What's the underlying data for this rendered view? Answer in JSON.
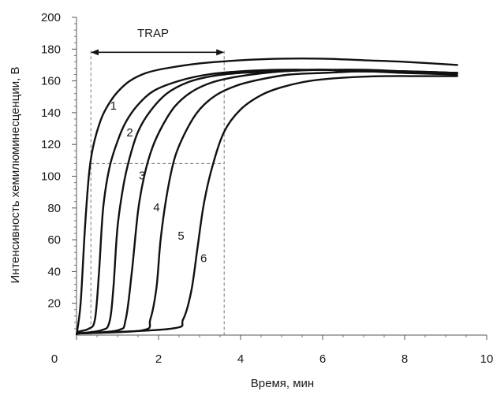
{
  "chart_data": {
    "type": "line",
    "title": "",
    "xlabel": "Время, мин",
    "ylabel": "Интенсивность хемилюминесценции, В",
    "xlim": [
      0,
      10
    ],
    "ylim": [
      0,
      200
    ],
    "x_ticks": [
      0,
      2,
      4,
      6,
      8,
      10
    ],
    "y_ticks": [
      20,
      40,
      60,
      80,
      100,
      120,
      140,
      160,
      180,
      200
    ],
    "grid": false,
    "legend": "none",
    "line_color": "#111111",
    "series": [
      {
        "label": "1",
        "x": [
          0.0,
          0.1,
          0.2,
          0.3,
          0.4,
          0.6,
          0.8,
          1.0,
          1.3,
          1.7,
          2.2,
          3.0,
          4.0,
          5.0,
          6.0,
          7.0,
          8.0,
          9.3
        ],
        "y": [
          0,
          20,
          65,
          100,
          118,
          136,
          146,
          153,
          160,
          165,
          168,
          171,
          173,
          174,
          174,
          173,
          172,
          170
        ]
      },
      {
        "label": "2",
        "x": [
          0.0,
          0.3,
          0.45,
          0.55,
          0.65,
          0.8,
          1.0,
          1.2,
          1.5,
          1.9,
          2.5,
          3.2,
          4.0,
          5.0,
          6.0,
          7.0,
          8.0,
          9.3
        ],
        "y": [
          2,
          4,
          10,
          40,
          80,
          105,
          122,
          134,
          145,
          154,
          160,
          164,
          166,
          167,
          167,
          167,
          166,
          165
        ]
      },
      {
        "label": "3",
        "x": [
          0.0,
          0.6,
          0.8,
          0.9,
          1.0,
          1.15,
          1.3,
          1.5,
          1.8,
          2.2,
          2.7,
          3.3,
          4.0,
          5.0,
          6.0,
          7.0,
          8.0,
          9.3
        ],
        "y": [
          1,
          3,
          8,
          30,
          68,
          95,
          112,
          128,
          141,
          152,
          159,
          163,
          165,
          166,
          167,
          166,
          166,
          165
        ]
      },
      {
        "label": "4",
        "x": [
          0.0,
          1.0,
          1.2,
          1.35,
          1.5,
          1.65,
          1.85,
          2.1,
          2.4,
          2.8,
          3.3,
          4.0,
          5.0,
          6.0,
          7.0,
          8.0,
          9.3
        ],
        "y": [
          1,
          3,
          10,
          40,
          78,
          100,
          118,
          132,
          144,
          153,
          159,
          163,
          166,
          167,
          166,
          166,
          165
        ]
      },
      {
        "label": "5",
        "x": [
          0.0,
          1.6,
          1.8,
          1.95,
          2.05,
          2.2,
          2.4,
          2.7,
          3.0,
          3.4,
          3.9,
          4.5,
          5.2,
          6.0,
          7.0,
          8.0,
          9.3
        ],
        "y": [
          1,
          3,
          10,
          30,
          60,
          88,
          112,
          130,
          142,
          151,
          157,
          161,
          164,
          165,
          166,
          165,
          164
        ]
      },
      {
        "label": "6",
        "x": [
          0.0,
          2.3,
          2.6,
          2.8,
          2.95,
          3.1,
          3.3,
          3.6,
          4.0,
          4.5,
          5.0,
          5.7,
          6.5,
          7.5,
          8.5,
          9.3
        ],
        "y": [
          1,
          4,
          10,
          28,
          55,
          82,
          105,
          128,
          142,
          151,
          156,
          160,
          162,
          163,
          163,
          163
        ]
      }
    ],
    "annotations": {
      "trap_label": "TRAP",
      "trap_range": [
        0.35,
        3.6
      ],
      "trap_arrow_y": 178,
      "ref_level_y": 108
    }
  }
}
